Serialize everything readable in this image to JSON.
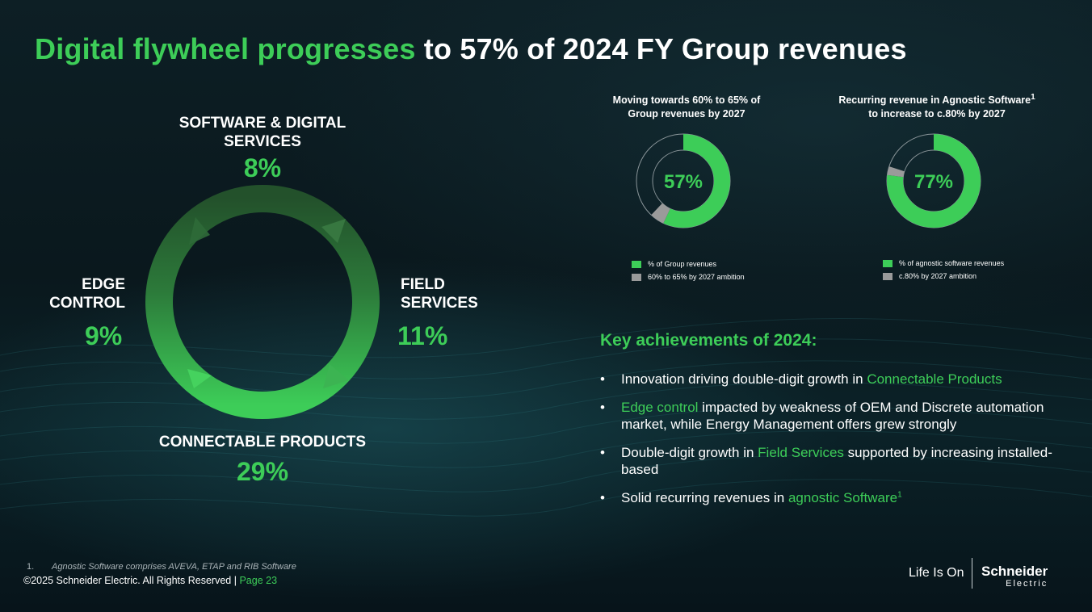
{
  "title": {
    "highlight": "Digital flywheel progresses",
    "rest": "to 57% of 2024 FY Group revenues"
  },
  "flywheel": {
    "segments": [
      {
        "label_line1": "SOFTWARE & DIGITAL",
        "label_line2": "SERVICES",
        "pct": "8%"
      },
      {
        "label_line1": "FIELD",
        "label_line2": "SERVICES",
        "pct": "11%"
      },
      {
        "label_line1": "CONNECTABLE PRODUCTS",
        "label_line2": "",
        "pct": "29%"
      },
      {
        "label_line1": "EDGE",
        "label_line2": "CONTROL",
        "pct": "9%"
      }
    ],
    "colors": {
      "ring_dark": "#2a5c32",
      "ring_mid": "#2f8a40",
      "ring_bright": "#3dcd58"
    }
  },
  "chart_data": [
    {
      "type": "pie",
      "title": "Moving towards 60% to 65% of Group revenues by 2027",
      "center_label": "57%",
      "slices": [
        {
          "name": "% of Group revenues",
          "value": 57,
          "color": "#3dcd58"
        },
        {
          "name": "60% to 65% by 2027 ambition",
          "value": 5,
          "color": "#9a9a9a"
        },
        {
          "name": "",
          "value": 38,
          "color": "none"
        }
      ]
    },
    {
      "type": "pie",
      "title": "Recurring revenue in Agnostic Software",
      "title_sup": "1",
      "title_line2": "to increase to c.80% by 2027",
      "center_label": "77%",
      "slices": [
        {
          "name": "% of agnostic software revenues",
          "value": 77,
          "color": "#3dcd58"
        },
        {
          "name": "c.80% by 2027 ambition",
          "value": 3,
          "color": "#9a9a9a"
        },
        {
          "name": "",
          "value": 20,
          "color": "none"
        }
      ]
    }
  ],
  "chart1": {
    "title_line1": "Moving towards 60% to 65% of",
    "title_line2": "Group revenues by 2027",
    "legend": [
      "% of Group revenues",
      "60% to 65% by 2027 ambition"
    ]
  },
  "chart2": {
    "title_line1": "Recurring revenue in Agnostic Software",
    "title_sup": "1",
    "title_line2": "to increase to c.80% by 2027",
    "legend": [
      "% of agnostic software revenues",
      "c.80% by 2027 ambition"
    ]
  },
  "achievements": {
    "title": "Key achievements of 2024:",
    "bullet_char": "•",
    "b1": {
      "pre": "Innovation driving double-digit growth in ",
      "hl": "Connectable Products"
    },
    "b2": {
      "hl": "Edge control",
      "post": " impacted by weakness of OEM and Discrete automation market, while Energy Management offers grew strongly"
    },
    "b3": {
      "pre": "Double-digit growth in ",
      "hl": "Field Services",
      "post": " supported by increasing installed-based"
    },
    "b4": {
      "pre": "Solid recurring revenues in ",
      "hl": "agnostic Software",
      "sup": "1"
    }
  },
  "footnote": {
    "num": "1.",
    "text": "Agnostic Software comprises AVEVA, ETAP and RIB Software"
  },
  "copyright": {
    "text": "©2025 Schneider Electric. All Rights Reserved | ",
    "page": "Page 23"
  },
  "brand": {
    "tagline": "Life Is On",
    "name": "Schneider",
    "sub": "Electric"
  },
  "colors": {
    "accent": "#3dcd58",
    "grey": "#9a9a9a",
    "bg": "#0d1f25"
  }
}
